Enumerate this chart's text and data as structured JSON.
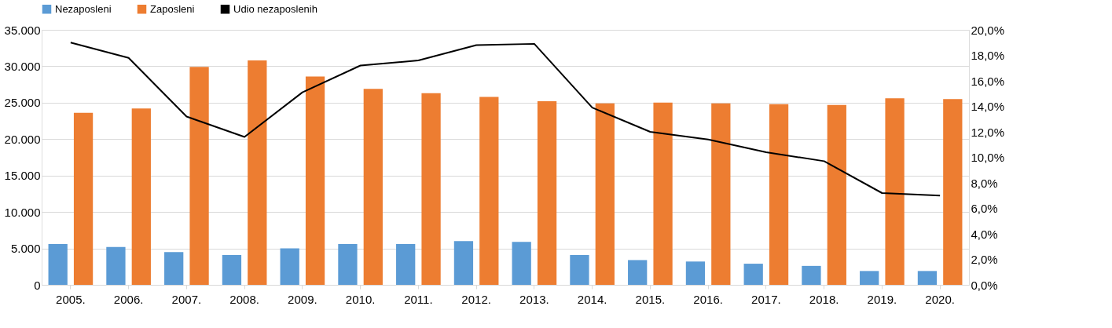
{
  "chart_data": {
    "type": "bar",
    "categories": [
      "2005.",
      "2006.",
      "2007.",
      "2008.",
      "2009.",
      "2010.",
      "2011.",
      "2012.",
      "2013.",
      "2014.",
      "2015.",
      "2016.",
      "2017.",
      "2018.",
      "2019.",
      "2020."
    ],
    "series": [
      {
        "name": "Nezaposleni",
        "color": "#5b9bd5",
        "values": [
          5600,
          5200,
          4500,
          4100,
          5000,
          5600,
          5600,
          6000,
          5900,
          4100,
          3400,
          3200,
          2900,
          2600,
          1900,
          1900
        ]
      },
      {
        "name": "Zaposleni",
        "color": "#ed7d31",
        "values": [
          23600,
          24200,
          29900,
          30800,
          28600,
          26900,
          26300,
          25800,
          25200,
          24900,
          25000,
          24900,
          24800,
          24700,
          25600,
          25500
        ]
      },
      {
        "name": "Udio nezaposlenih",
        "type": "line",
        "axis": "y2",
        "color": "#000000",
        "values": [
          19.0,
          17.8,
          13.2,
          11.6,
          15.1,
          17.2,
          17.6,
          18.8,
          18.9,
          13.9,
          12.0,
          11.4,
          10.4,
          9.7,
          7.2,
          7.0
        ]
      }
    ],
    "ylim": [
      0,
      35000
    ],
    "yticks": [
      0,
      {
        "value": 5000,
        "label": "5.000"
      },
      {
        "value": 10000,
        "label": "10.000"
      },
      {
        "value": 15000,
        "label": "15.000"
      },
      {
        "value": 20000,
        "label": "20.000"
      },
      {
        "value": 25000,
        "label": "25.000"
      },
      {
        "value": 30000,
        "label": "30.000"
      },
      {
        "value": 35000,
        "label": "35.000"
      }
    ],
    "y2lim": [
      0,
      20
    ],
    "y2ticks": [
      {
        "value": 0,
        "label": "0,0%"
      },
      {
        "value": 2,
        "label": "2,0%"
      },
      {
        "value": 4,
        "label": "4,0%"
      },
      {
        "value": 6,
        "label": "6,0%"
      },
      {
        "value": 8,
        "label": "8,0%"
      },
      {
        "value": 10,
        "label": "10,0%"
      },
      {
        "value": 12,
        "label": "12,0%"
      },
      {
        "value": 14,
        "label": "14,0%"
      },
      {
        "value": 16,
        "label": "16,0%"
      },
      {
        "value": 18,
        "label": "18,0%"
      },
      {
        "value": 20,
        "label": "20,0%"
      }
    ],
    "grid": "y",
    "legend": "top",
    "marker": "none",
    "line_style": "solid"
  }
}
